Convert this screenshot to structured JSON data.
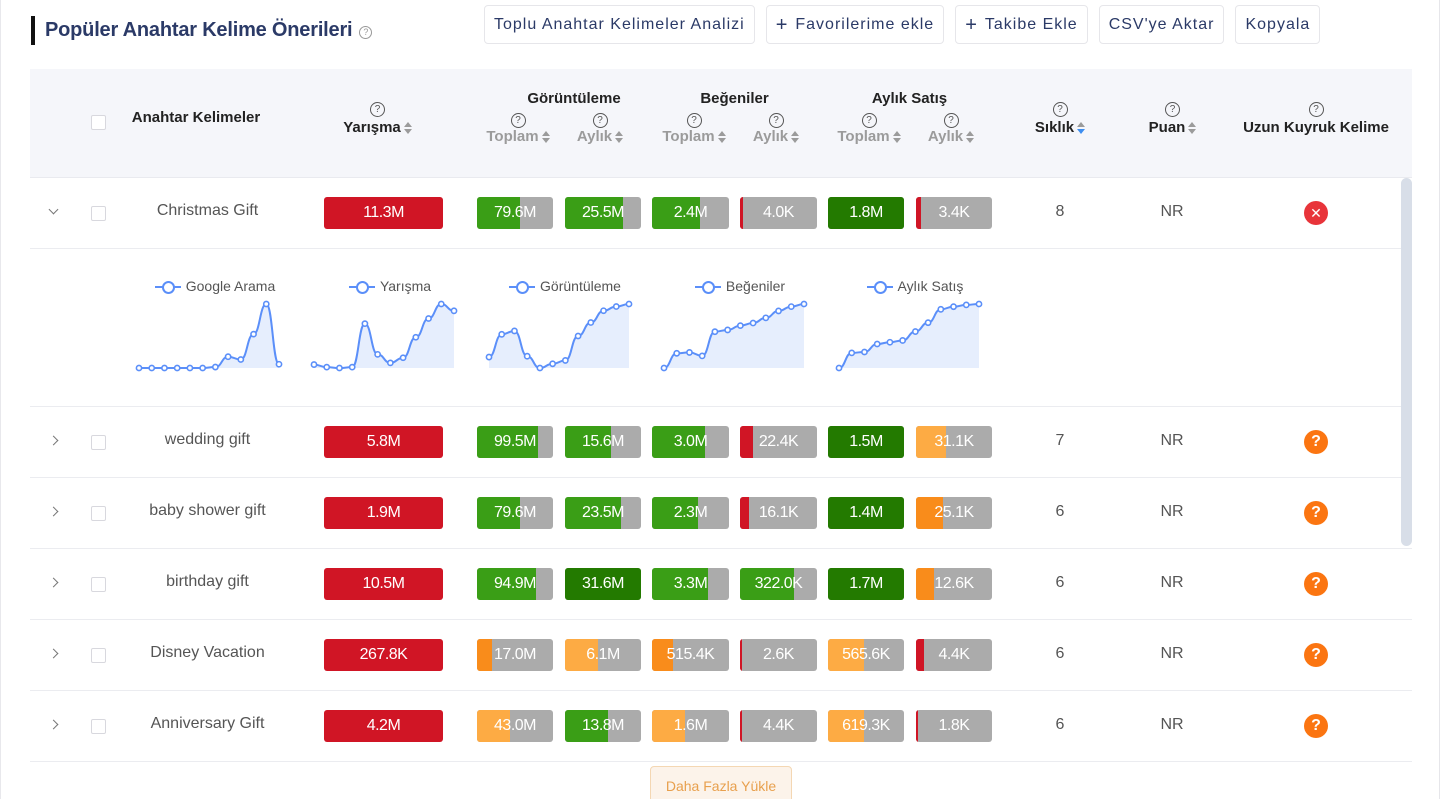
{
  "header": {
    "title": "Popüler Anahtar Kelime Önerileri",
    "help_icon": "question-circle-icon",
    "buttons": [
      {
        "label": "Toplu Anahtar Kelimeler Analizi",
        "icon": null
      },
      {
        "label": "Favorilerime ekle",
        "icon": "plus-icon"
      },
      {
        "label": "Takibe Ekle",
        "icon": "plus-icon"
      },
      {
        "label": "CSV'ye Aktar",
        "icon": null
      },
      {
        "label": "Kopyala",
        "icon": null
      }
    ]
  },
  "table": {
    "columns": {
      "keywords": "Anahtar Kelimeler",
      "competition": "Yarışma",
      "views": "Görüntüleme",
      "likes": "Beğeniler",
      "monthly_sales": "Aylık Satış",
      "total": "Toplam",
      "monthly": "Aylık",
      "frequency": "Sıklık",
      "score": "Puan",
      "long_tail": "Uzun Kuyruk Kelime"
    },
    "colors": {
      "red": "#d01525",
      "green": "#3a9e16",
      "dark_green": "#237a00",
      "orange": "#f98c1b",
      "light_orange": "#fdab44",
      "gray": "#ababab",
      "x_icon": "#e8343a",
      "q_icon": "#fb7511"
    },
    "rows": [
      {
        "keyword": "Christmas Gift",
        "expanded": true,
        "competition": "11.3M",
        "views_total": {
          "value": "79.6M",
          "pct": 57,
          "color": "green"
        },
        "views_monthly": {
          "value": "25.5M",
          "pct": 76,
          "color": "green"
        },
        "likes_total": {
          "value": "2.4M",
          "pct": 62,
          "color": "green"
        },
        "likes_monthly": {
          "value": "4.0K",
          "pct": 4,
          "color": "red"
        },
        "sales_total": {
          "value": "1.8M",
          "pct": 100,
          "color": "dark_green"
        },
        "sales_monthly": {
          "value": "3.4K",
          "pct": 7,
          "color": "red"
        },
        "frequency": "8",
        "score": "NR",
        "long_tail": "x"
      },
      {
        "keyword": "wedding gift",
        "expanded": false,
        "competition": "5.8M",
        "views_total": {
          "value": "99.5M",
          "pct": 80,
          "color": "green"
        },
        "views_monthly": {
          "value": "15.6M",
          "pct": 60,
          "color": "green"
        },
        "likes_total": {
          "value": "3.0M",
          "pct": 69,
          "color": "green"
        },
        "likes_monthly": {
          "value": "22.4K",
          "pct": 17,
          "color": "red"
        },
        "sales_total": {
          "value": "1.5M",
          "pct": 100,
          "color": "dark_green"
        },
        "sales_monthly": {
          "value": "31.1K",
          "pct": 40,
          "color": "light_orange"
        },
        "frequency": "7",
        "score": "NR",
        "long_tail": "?"
      },
      {
        "keyword": "baby shower gift",
        "expanded": false,
        "competition": "1.9M",
        "views_total": {
          "value": "79.6M",
          "pct": 57,
          "color": "green"
        },
        "views_monthly": {
          "value": "23.5M",
          "pct": 74,
          "color": "green"
        },
        "likes_total": {
          "value": "2.3M",
          "pct": 60,
          "color": "green"
        },
        "likes_monthly": {
          "value": "16.1K",
          "pct": 12,
          "color": "red"
        },
        "sales_total": {
          "value": "1.4M",
          "pct": 100,
          "color": "dark_green"
        },
        "sales_monthly": {
          "value": "25.1K",
          "pct": 35,
          "color": "orange"
        },
        "frequency": "6",
        "score": "NR",
        "long_tail": "?"
      },
      {
        "keyword": "birthday gift",
        "expanded": false,
        "competition": "10.5M",
        "views_total": {
          "value": "94.9M",
          "pct": 78,
          "color": "green"
        },
        "views_monthly": {
          "value": "31.6M",
          "pct": 100,
          "color": "dark_green"
        },
        "likes_total": {
          "value": "3.3M",
          "pct": 73,
          "color": "green"
        },
        "likes_monthly": {
          "value": "322.0K",
          "pct": 70,
          "color": "green"
        },
        "sales_total": {
          "value": "1.7M",
          "pct": 100,
          "color": "dark_green"
        },
        "sales_monthly": {
          "value": "12.6K",
          "pct": 24,
          "color": "orange"
        },
        "frequency": "6",
        "score": "NR",
        "long_tail": "?"
      },
      {
        "keyword": "Disney Vacation",
        "expanded": false,
        "competition": "267.8K",
        "views_total": {
          "value": "17.0M",
          "pct": 20,
          "color": "orange"
        },
        "views_monthly": {
          "value": "6.1M",
          "pct": 44,
          "color": "light_orange"
        },
        "likes_total": {
          "value": "515.4K",
          "pct": 27,
          "color": "orange"
        },
        "likes_monthly": {
          "value": "2.6K",
          "pct": 2,
          "color": "red"
        },
        "sales_total": {
          "value": "565.6K",
          "pct": 47,
          "color": "light_orange"
        },
        "sales_monthly": {
          "value": "4.4K",
          "pct": 10,
          "color": "red"
        },
        "frequency": "6",
        "score": "NR",
        "long_tail": "?"
      },
      {
        "keyword": "Anniversary Gift",
        "expanded": false,
        "competition": "4.2M",
        "views_total": {
          "value": "43.0M",
          "pct": 44,
          "color": "light_orange"
        },
        "views_monthly": {
          "value": "13.8M",
          "pct": 57,
          "color": "green"
        },
        "likes_total": {
          "value": "1.6M",
          "pct": 43,
          "color": "light_orange"
        },
        "likes_monthly": {
          "value": "4.4K",
          "pct": 3,
          "color": "red"
        },
        "sales_total": {
          "value": "619.3K",
          "pct": 47,
          "color": "light_orange"
        },
        "sales_monthly": {
          "value": "1.8K",
          "pct": 3,
          "color": "red"
        },
        "frequency": "6",
        "score": "NR",
        "long_tail": "?"
      }
    ]
  },
  "trend_charts": [
    {
      "label": "Google Arama",
      "values": [
        0,
        0,
        0,
        0,
        0,
        0,
        1,
        12,
        9,
        36,
        68,
        4
      ]
    },
    {
      "label": "Yarışma",
      "values": [
        6,
        3,
        2,
        3,
        54,
        18,
        8,
        14,
        38,
        60,
        77,
        69
      ]
    },
    {
      "label": "Görüntüleme",
      "values": [
        13,
        40,
        44,
        14,
        0,
        5,
        9,
        38,
        54,
        68,
        73,
        76
      ]
    },
    {
      "label": "Beğeniler",
      "values": [
        0,
        17,
        18,
        14,
        42,
        44,
        49,
        52,
        58,
        66,
        71,
        74
      ]
    },
    {
      "label": "Aylık Satış",
      "values": [
        0,
        17,
        18,
        27,
        29,
        31,
        41,
        51,
        66,
        69,
        71,
        72
      ]
    }
  ],
  "footer": {
    "load_more": "Daha Fazla Yükle"
  }
}
